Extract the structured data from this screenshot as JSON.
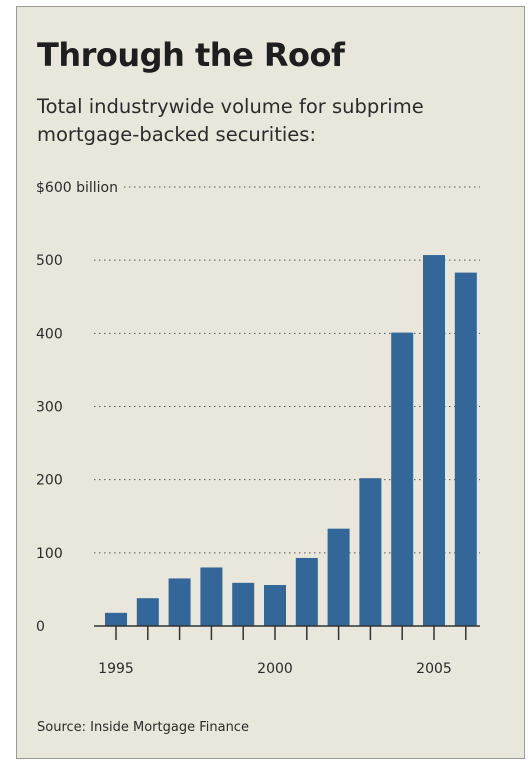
{
  "chart_data": {
    "type": "bar",
    "title": "Through the Roof",
    "subtitle": "Total industrywide volume for subprime mortgage-backed securities:",
    "source": "Source: Inside Mortgage Finance",
    "categories": [
      "1995",
      "1996",
      "1997",
      "1998",
      "1999",
      "2000",
      "2001",
      "2002",
      "2003",
      "2004",
      "2005",
      "2006"
    ],
    "values": [
      18,
      38,
      65,
      80,
      59,
      56,
      93,
      133,
      202,
      401,
      507,
      483
    ],
    "ylim": [
      0,
      600
    ],
    "y_ticks": [
      {
        "value": 0,
        "label": "0"
      },
      {
        "value": 100,
        "label": "100"
      },
      {
        "value": 200,
        "label": "200"
      },
      {
        "value": 300,
        "label": "300"
      },
      {
        "value": 400,
        "label": "400"
      },
      {
        "value": 500,
        "label": "500"
      },
      {
        "value": 600,
        "label": "$600 billion"
      }
    ],
    "x_tick_labels": [
      {
        "category": "1995",
        "label": "1995"
      },
      {
        "category": "2000",
        "label": "2000"
      },
      {
        "category": "2005",
        "label": "2005"
      }
    ],
    "grid": "dotted",
    "bar_color": "#33679a",
    "background_color": "#e9e6dc"
  }
}
